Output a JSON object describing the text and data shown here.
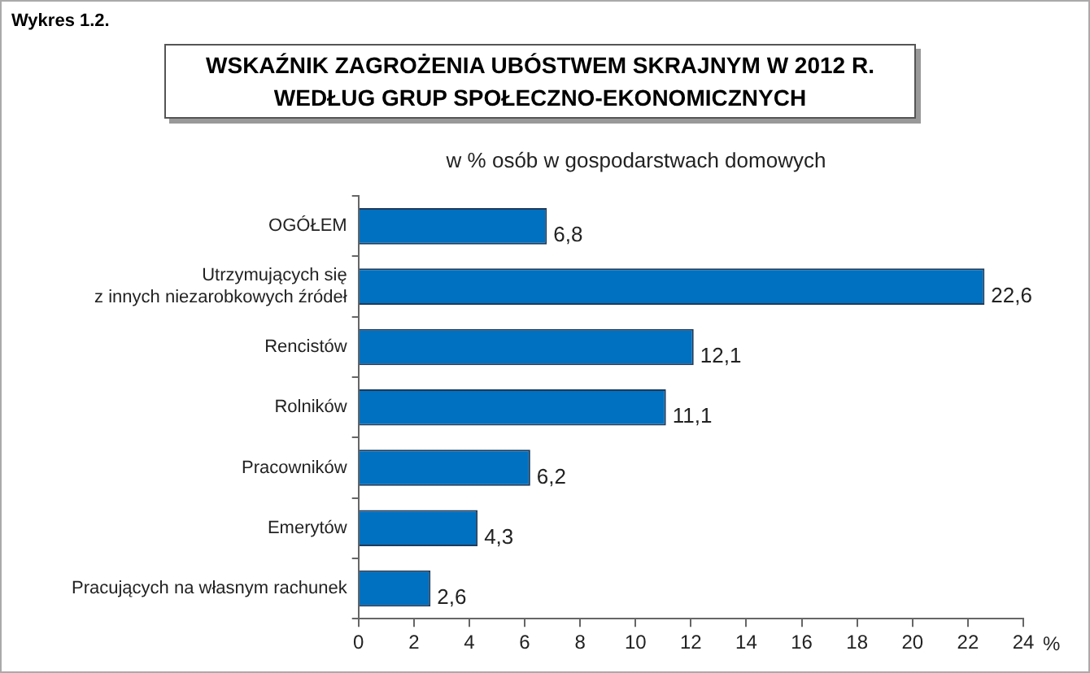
{
  "chart_data": {
    "type": "bar",
    "orientation": "horizontal",
    "title": "WSKAŹNIK ZAGROŻENIA UBÓSTWEM SKRAJNYM W 2012 R.\nWEDŁUG GRUP SPOŁECZNO-EKONOMICZNYCH",
    "subtitle": "w % osób w gospodarstwach domowych",
    "xlabel": "%",
    "annotations": [
      "Wykres 1.2."
    ],
    "categories": [
      "OGÓŁEM",
      "Utrzymujących się\nz innych niezarobkowych źródeł",
      "Rencistów",
      "Rolników",
      "Pracowników",
      "Emerytów",
      "Pracujących na własnym rachunek"
    ],
    "values": [
      6.8,
      22.6,
      12.1,
      11.1,
      6.2,
      4.3,
      2.6
    ],
    "value_labels": [
      "6,8",
      "22,6",
      "12,1",
      "11,1",
      "6,2",
      "4,3",
      "2,6"
    ],
    "color": "#0070c0",
    "xlim": [
      0,
      24
    ],
    "xticks": [
      0,
      2,
      4,
      6,
      8,
      10,
      12,
      14,
      16,
      18,
      20,
      22,
      24
    ],
    "grid": false,
    "legend": false
  }
}
